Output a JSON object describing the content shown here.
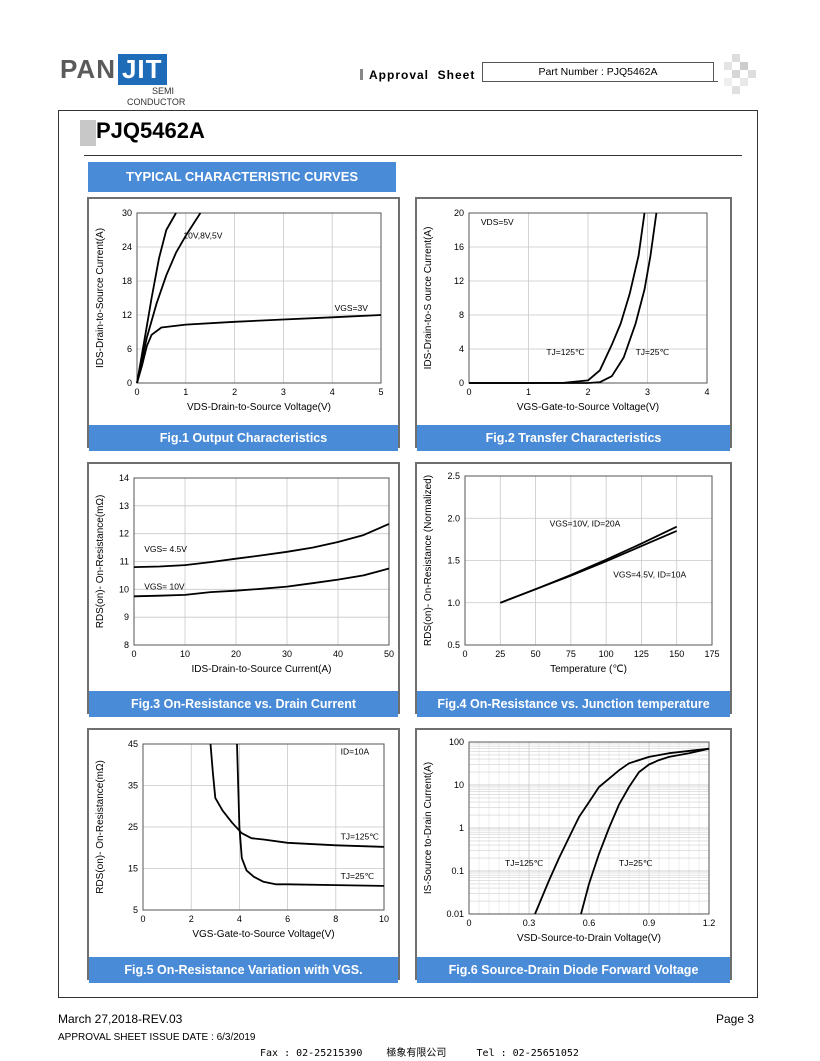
{
  "header": {
    "logo_main": "PAN",
    "logo_accent": "JIT",
    "logo_sub1": "SEMI",
    "logo_sub2": "CONDUCTOR",
    "approval_sheet": "Approval  Sheet",
    "part_number": "Part Number : PJQ5462A",
    "colors": {
      "accent": "#4a8bd8",
      "logo_blue": "#1e6bb8"
    }
  },
  "part_title": "PJQ5462A",
  "section_title": "TYPICAL CHARACTERISTIC CURVES",
  "figures": [
    {
      "caption": "Fig.1 Output Characteristics"
    },
    {
      "caption": "Fig.2 Transfer Characteristics"
    },
    {
      "caption": "Fig.3 On-Resistance vs. Drain Current"
    },
    {
      "caption": "Fig.4 On-Resistance vs. Junction temperature"
    },
    {
      "caption": "Fig.5 On-Resistance Variation with VGS."
    },
    {
      "caption": "Fig.6 Source-Drain Diode Forward Voltage"
    }
  ],
  "chart_data": [
    {
      "type": "line",
      "ylabel": "IDS-Drain-to-Source Current(A)",
      "xlabel": "VDS-Drain-to-Source Voltage(V)",
      "xlim": [
        0,
        5
      ],
      "ylim": [
        0,
        30
      ],
      "xticks": [
        "0",
        "1",
        "2",
        "3",
        "4",
        "5"
      ],
      "yticks": [
        "0",
        "6",
        "12",
        "18",
        "24",
        "30"
      ],
      "series": [
        {
          "name": "10V,8V,5V",
          "x": [
            0,
            0.1,
            0.2,
            0.3,
            0.45,
            0.6,
            0.8
          ],
          "y": [
            0,
            5,
            10,
            15,
            22,
            27,
            30
          ]
        },
        {
          "name": "",
          "x": [
            0,
            0.1,
            0.2,
            0.4,
            0.6,
            0.8,
            1.0,
            1.3
          ],
          "y": [
            0,
            4,
            8,
            14,
            19,
            23,
            26,
            30
          ]
        },
        {
          "name": "VGS=3V",
          "x": [
            0,
            0.1,
            0.2,
            0.3,
            0.5,
            1,
            2,
            3,
            4,
            5
          ],
          "y": [
            0,
            3,
            6.5,
            8.5,
            9.8,
            10.3,
            10.8,
            11.2,
            11.6,
            12
          ]
        }
      ]
    },
    {
      "type": "line",
      "ylabel": "IDS-Drain-to-S ource Current(A)",
      "xlabel": "VGS-Gate-to-Source Voltage(V)",
      "xlim": [
        0,
        4
      ],
      "ylim": [
        0,
        20
      ],
      "xticks": [
        "0",
        "1",
        "2",
        "3",
        "4"
      ],
      "yticks": [
        "0",
        "4",
        "8",
        "12",
        "16",
        "20"
      ],
      "annotation": "VDS=5V",
      "series": [
        {
          "name": "TJ=125℃",
          "x": [
            0,
            1,
            1.6,
            2.0,
            2.2,
            2.4,
            2.55,
            2.7,
            2.85,
            2.95
          ],
          "y": [
            0,
            0,
            0.02,
            0.3,
            1.5,
            4.5,
            7,
            10.5,
            15,
            20
          ]
        },
        {
          "name": "TJ=25℃",
          "x": [
            0,
            1,
            2,
            2.2,
            2.4,
            2.6,
            2.8,
            2.95,
            3.05,
            3.15
          ],
          "y": [
            0,
            0,
            0,
            0.1,
            0.8,
            3,
            7,
            11,
            15,
            20
          ]
        }
      ]
    },
    {
      "type": "line",
      "ylabel": "RDS(on)- On-Resistance(mΩ)",
      "xlabel": "IDS-Drain-to-Source  Current(A)",
      "xlim": [
        0,
        50
      ],
      "ylim": [
        8,
        14
      ],
      "xticks": [
        "0",
        "10",
        "20",
        "30",
        "40",
        "50"
      ],
      "yticks": [
        "8",
        "9",
        "10",
        "11",
        "12",
        "13",
        "14"
      ],
      "series": [
        {
          "name": "VGS= 4.5V",
          "x": [
            0,
            5,
            10,
            15,
            20,
            25,
            30,
            35,
            40,
            45,
            50
          ],
          "y": [
            10.8,
            10.82,
            10.87,
            10.98,
            11.1,
            11.22,
            11.35,
            11.5,
            11.7,
            11.95,
            12.35
          ]
        },
        {
          "name": "VGS= 10V",
          "x": [
            0,
            5,
            10,
            15,
            20,
            25,
            30,
            35,
            40,
            45,
            50
          ],
          "y": [
            9.75,
            9.77,
            9.8,
            9.9,
            9.95,
            10.02,
            10.1,
            10.22,
            10.35,
            10.5,
            10.75
          ]
        }
      ]
    },
    {
      "type": "line",
      "ylabel": "RDS(on)- On-Resistance (Normalized)",
      "xlabel": "Temperature (℃)",
      "xlim": [
        0,
        175
      ],
      "ylim": [
        0.5,
        2.5
      ],
      "xticks": [
        "0",
        "25",
        "50",
        "75",
        "100",
        "125",
        "150",
        "175"
      ],
      "yticks": [
        "0.5",
        "1.0",
        "1.5",
        "2.0",
        "2.5"
      ],
      "series": [
        {
          "name": "VGS=10V, ID=20A",
          "x": [
            25,
            50,
            75,
            100,
            125,
            150
          ],
          "y": [
            1.0,
            1.16,
            1.33,
            1.51,
            1.7,
            1.9
          ]
        },
        {
          "name": "VGS=4.5V, ID=10A",
          "x": [
            25,
            50,
            75,
            100,
            125,
            150
          ],
          "y": [
            1.0,
            1.16,
            1.32,
            1.49,
            1.67,
            1.85
          ]
        }
      ]
    },
    {
      "type": "line",
      "ylabel": "RDS(on)- On-Resistance(mΩ)",
      "xlabel": "VGS-Gate-to-Source  Voltage(V)",
      "xlim": [
        0,
        10
      ],
      "ylim": [
        5,
        45
      ],
      "xticks": [
        "0",
        "2",
        "4",
        "6",
        "8",
        "10"
      ],
      "yticks": [
        "5",
        "15",
        "25",
        "35",
        "45"
      ],
      "annotation": "ID=10A",
      "series": [
        {
          "name": "TJ=125℃",
          "x": [
            2.8,
            2.9,
            3.0,
            3.3,
            3.7,
            4.1,
            4.5,
            5,
            6,
            8,
            10
          ],
          "y": [
            45,
            38,
            32,
            29,
            26,
            23.5,
            22.3,
            22,
            21.2,
            20.6,
            20.2
          ]
        },
        {
          "name": "TJ=25℃",
          "x": [
            3.9,
            3.95,
            4.0,
            4.1,
            4.3,
            4.6,
            5,
            5.5,
            6,
            8,
            10
          ],
          "y": [
            45,
            35,
            25,
            17.5,
            14.5,
            13,
            11.8,
            11.2,
            11.2,
            11,
            10.8
          ]
        }
      ]
    },
    {
      "type": "line",
      "ylabel": "IS-Source  to-Drain Current(A)",
      "xlabel": "VSD-Source-to-Drain Voltage(V)",
      "xlim": [
        0,
        1.2
      ],
      "ylim": [
        0.01,
        100
      ],
      "yscale": "log",
      "xticks": [
        "0",
        "0.3",
        "0.6",
        "0.9",
        "1.2"
      ],
      "yticks": [
        "0.01",
        "0.1",
        "1",
        "10",
        "100"
      ],
      "series": [
        {
          "name": "TJ=125℃",
          "x": [
            0.33,
            0.4,
            0.45,
            0.5,
            0.55,
            0.6,
            0.65,
            0.7,
            0.75,
            0.8,
            0.9,
            1.0,
            1.2
          ],
          "y": [
            0.01,
            0.06,
            0.2,
            0.6,
            1.8,
            4,
            9,
            14,
            22,
            32,
            45,
            55,
            70
          ]
        },
        {
          "name": "TJ=25℃",
          "x": [
            0.56,
            0.6,
            0.65,
            0.7,
            0.75,
            0.8,
            0.85,
            0.9,
            0.95,
            1.0,
            1.1,
            1.2
          ],
          "y": [
            0.01,
            0.05,
            0.25,
            1,
            3.5,
            9,
            20,
            30,
            38,
            45,
            55,
            70
          ]
        }
      ]
    }
  ],
  "footer": {
    "date_rev": "March 27,2018-REV.03",
    "page": "Page 3",
    "issue_date": "APPROVAL SHEET ISSUE DATE : 6/3/2019",
    "contact": "Fax : 02-25215390    極象有限公司     Tel : 02-25651052"
  }
}
